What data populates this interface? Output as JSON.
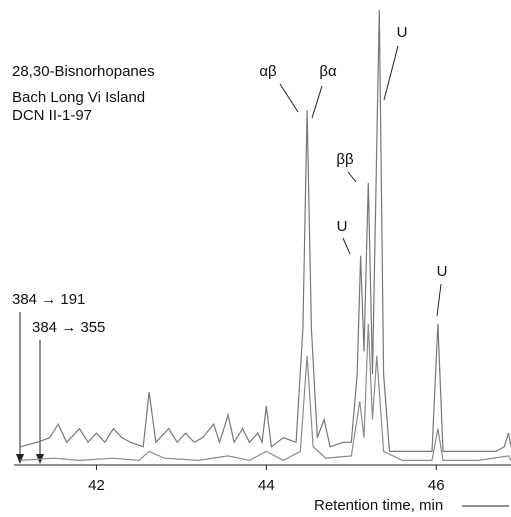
{
  "chart_data": {
    "type": "line",
    "title": "28,30-Bisnorhopanes",
    "subtitle": [
      "Bach Long Vi Island",
      "DCN II-1-97"
    ],
    "x_label": "Retention time, min",
    "xlim": [
      41.1,
      46.88
    ],
    "xticks": [
      42,
      44,
      46
    ],
    "ylim": [
      0,
      100
    ],
    "annotations": [
      "αβ",
      "βα",
      "ββ",
      "U",
      "U",
      "U"
    ],
    "series": [
      {
        "name": "384 → 191",
        "color": "#777777",
        "x": [
          41.1,
          41.3,
          41.45,
          41.55,
          41.65,
          41.8,
          41.9,
          42.0,
          42.1,
          42.2,
          42.3,
          42.4,
          42.55,
          42.62,
          42.7,
          42.85,
          42.95,
          43.05,
          43.15,
          43.25,
          43.38,
          43.45,
          43.55,
          43.62,
          43.72,
          43.8,
          43.9,
          43.95,
          44.0,
          44.06,
          44.2,
          44.35,
          44.43,
          44.48,
          44.53,
          44.6,
          44.68,
          44.75,
          44.9,
          45.0,
          45.07,
          45.11,
          45.15,
          45.2,
          45.25,
          45.33,
          45.38,
          45.45,
          45.6,
          45.8,
          45.95,
          46.02,
          46.08,
          46.3,
          46.5,
          46.7,
          46.8,
          46.85,
          46.88
        ],
        "values": [
          4,
          5,
          6,
          9,
          5,
          8,
          5,
          7,
          5,
          8,
          6,
          5,
          4,
          16,
          5,
          8,
          5,
          7,
          5,
          6,
          9,
          5,
          11,
          5,
          8,
          5,
          7,
          5,
          13,
          4,
          6,
          5,
          30,
          78,
          30,
          6,
          10,
          4,
          5,
          5,
          20,
          46,
          25,
          62,
          20,
          100,
          20,
          3,
          3,
          3,
          3,
          31,
          3,
          3,
          3,
          3,
          4,
          7,
          4
        ]
      },
      {
        "name": "384 → 355",
        "color": "#8a8a8a",
        "x": [
          41.1,
          41.5,
          41.8,
          42.2,
          42.5,
          42.62,
          42.8,
          43.2,
          43.55,
          43.8,
          44.0,
          44.2,
          44.4,
          44.48,
          44.55,
          44.7,
          45.0,
          45.1,
          45.15,
          45.2,
          45.25,
          45.3,
          45.38,
          45.6,
          45.95,
          46.02,
          46.08,
          46.5,
          46.85,
          46.88
        ],
        "values": [
          1,
          1.5,
          1,
          1.5,
          1,
          3,
          1.5,
          1,
          2,
          1,
          3,
          1,
          3,
          24,
          4,
          1.5,
          2,
          14,
          6,
          31,
          10,
          24,
          3,
          1,
          1,
          8,
          1,
          1,
          2,
          1
        ]
      }
    ]
  }
}
